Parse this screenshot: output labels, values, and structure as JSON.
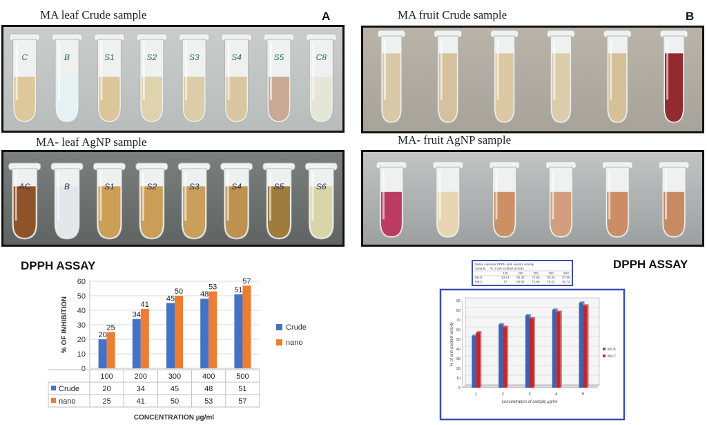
{
  "panels": {
    "leaf_crude": {
      "title": "MA leaf Crude sample",
      "letter": "A",
      "tubes": [
        {
          "label": "C",
          "liquid": "#dcc596"
        },
        {
          "label": "B",
          "liquid": "#e4f1f3"
        },
        {
          "label": "S1",
          "liquid": "#dbc393"
        },
        {
          "label": "S2",
          "liquid": "#ddd1ab"
        },
        {
          "label": "S3",
          "liquid": "#dac9a3"
        },
        {
          "label": "S4",
          "liquid": "#d8c39c"
        },
        {
          "label": "S5",
          "liquid": "#c7a58f"
        },
        {
          "label": "C8",
          "liquid": "#e5e5d6"
        }
      ]
    },
    "leaf_agnp": {
      "title": "MA- leaf AgNP sample",
      "tubes": [
        {
          "label": "AC",
          "liquid": "#8a4a1e"
        },
        {
          "label": "B",
          "liquid": "#dfe6ea"
        },
        {
          "label": "S1",
          "liquid": "#c99a4c"
        },
        {
          "label": "S2",
          "liquid": "#c8994e"
        },
        {
          "label": "S3",
          "liquid": "#c79a52"
        },
        {
          "label": "S4",
          "liquid": "#b88c45"
        },
        {
          "label": "S5",
          "liquid": "#9a7434"
        },
        {
          "label": "S6",
          "liquid": "#d8d3a4"
        }
      ]
    },
    "fruit_crude": {
      "title": "MA fruit Crude sample",
      "letter": "B",
      "tubes": [
        {
          "liquid": "#d7c6a3"
        },
        {
          "liquid": "#d3bf98"
        },
        {
          "liquid": "#d8c69e"
        },
        {
          "liquid": "#d9c9a6"
        },
        {
          "liquid": "#d3bd92"
        },
        {
          "liquid": "#8e1d25"
        }
      ]
    },
    "fruit_agnp": {
      "title": "MA- fruit AgNP sample",
      "tubes": [
        {
          "liquid": "#b8305a"
        },
        {
          "liquid": "#e7d4ad"
        },
        {
          "liquid": "#c98a5c"
        },
        {
          "liquid": "#cf9a78"
        },
        {
          "liquid": "#c8875e"
        },
        {
          "liquid": "#c4855b"
        }
      ]
    }
  },
  "assay_titles": [
    "DPPH ASSAY",
    "DPPH ASSAY"
  ],
  "colors": {
    "crude": "#4472c4",
    "nano": "#ed7d31",
    "ma_b": "#3b63b5",
    "ma_c": "#c0282d",
    "frame_blue": "#3a4fb0"
  },
  "chart_data": [
    {
      "type": "bar",
      "categories": [
        "100",
        "200",
        "300",
        "400",
        "500"
      ],
      "series": [
        {
          "name": "Crude",
          "values": [
            20,
            34,
            45,
            48,
            51
          ]
        },
        {
          "name": "nano",
          "values": [
            25,
            41,
            50,
            53,
            57
          ]
        }
      ],
      "title": "DPPH ASSAY",
      "xlabel": "CONCENTRATION µg/ml",
      "ylabel": "% OF INHIBITION",
      "ylim": [
        0,
        60
      ],
      "yticks": [
        0,
        10,
        20,
        30,
        40,
        50,
        60
      ],
      "grid": true,
      "legend": "right",
      "data_table": true
    },
    {
      "type": "bar",
      "categories": [
        "1",
        "2",
        "3",
        "4",
        "5"
      ],
      "series": [
        {
          "name": "Ma B",
          "values": [
            53.61,
            65.32,
            74.65,
            80.45,
            87.68
          ]
        },
        {
          "name": "Ma C",
          "values": [
            57,
            62.62,
            71.56,
            78.21,
            84.72
          ]
        }
      ],
      "title": "DPPH ASSAY",
      "xlabel": "concentration of sample µg/ml",
      "ylabel": "% of anti oxidant activity",
      "ylim": [
        0,
        90
      ],
      "yticks": [
        0,
        10,
        20,
        30,
        40,
        50,
        60,
        70,
        80,
        90
      ],
      "grid": true,
      "legend": "right",
      "table": {
        "title": "Mulka caerulea      DPPH (anti oxidant activity",
        "header": [
          "Sample",
          "% of anti-oxidant activity"
        ],
        "concentrations": [
          "100",
          "200",
          "300",
          "400",
          "500"
        ],
        "rows": [
          {
            "label": "Ma B",
            "values": [
              "53.61",
              "65.32",
              "74.65",
              "80.45",
              "87.68"
            ]
          },
          {
            "label": "Ma C",
            "values": [
              "57",
              "62.62",
              "71.56",
              "78.21",
              "84.72"
            ]
          }
        ]
      }
    }
  ]
}
